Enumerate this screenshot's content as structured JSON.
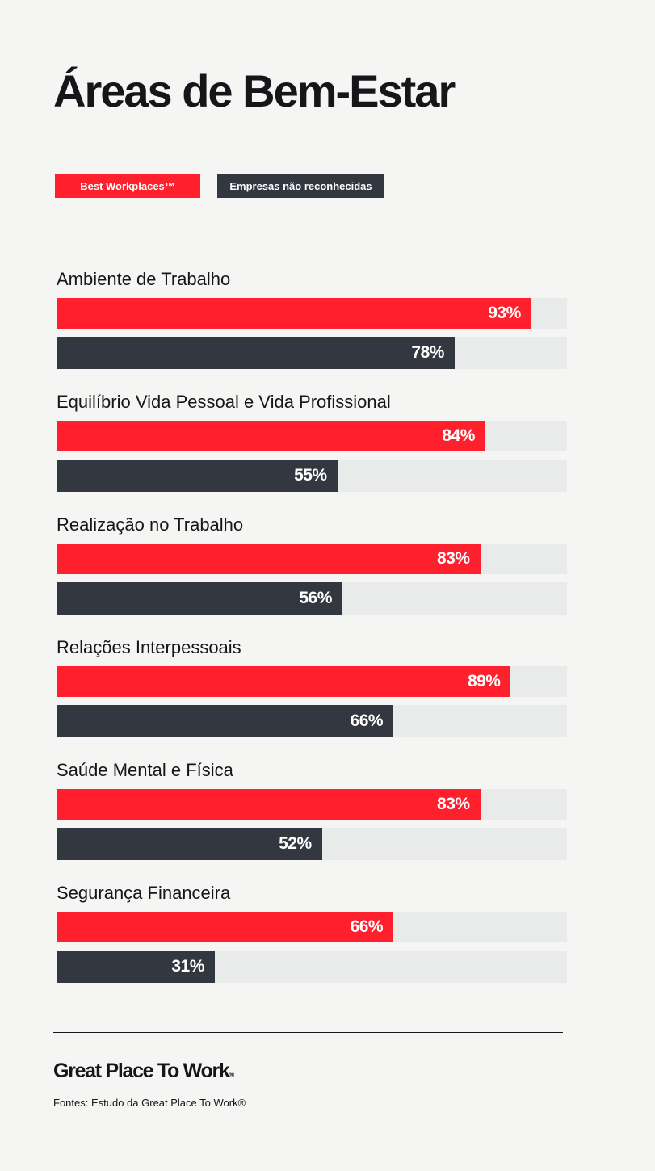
{
  "title": "Áreas de Bem-Estar",
  "legend": {
    "best": "Best Workplaces™",
    "other": "Empresas não reconhecidas"
  },
  "colors": {
    "best": "#ff1f2d",
    "other": "#33373f",
    "track": "#e9eaea",
    "background": "#f5f5f4"
  },
  "chart_data": {
    "type": "bar",
    "orientation": "horizontal",
    "categories": [
      "Ambiente de Trabalho",
      "Equilíbrio Vida Pessoal e Vida Profissional",
      "Realização no Trabalho",
      "Relações Interpessoais",
      "Saúde Mental e Física",
      "Segurança Financeira"
    ],
    "series": [
      {
        "name": "Best Workplaces™",
        "values": [
          93,
          84,
          83,
          89,
          83,
          66
        ]
      },
      {
        "name": "Empresas não reconhecidas",
        "values": [
          78,
          55,
          56,
          66,
          52,
          31
        ]
      }
    ],
    "value_labels": [
      [
        "93%",
        "84%",
        "83%",
        "89%",
        "83%",
        "66%"
      ],
      [
        "78%",
        "55%",
        "56%",
        "66%",
        "52%",
        "31%"
      ]
    ],
    "xlim": [
      0,
      100
    ],
    "unit": "%"
  },
  "footer": {
    "logo_text": "Great Place To Work",
    "logo_mark": "®",
    "source": "Fontes: Estudo da Great Place To Work®"
  }
}
